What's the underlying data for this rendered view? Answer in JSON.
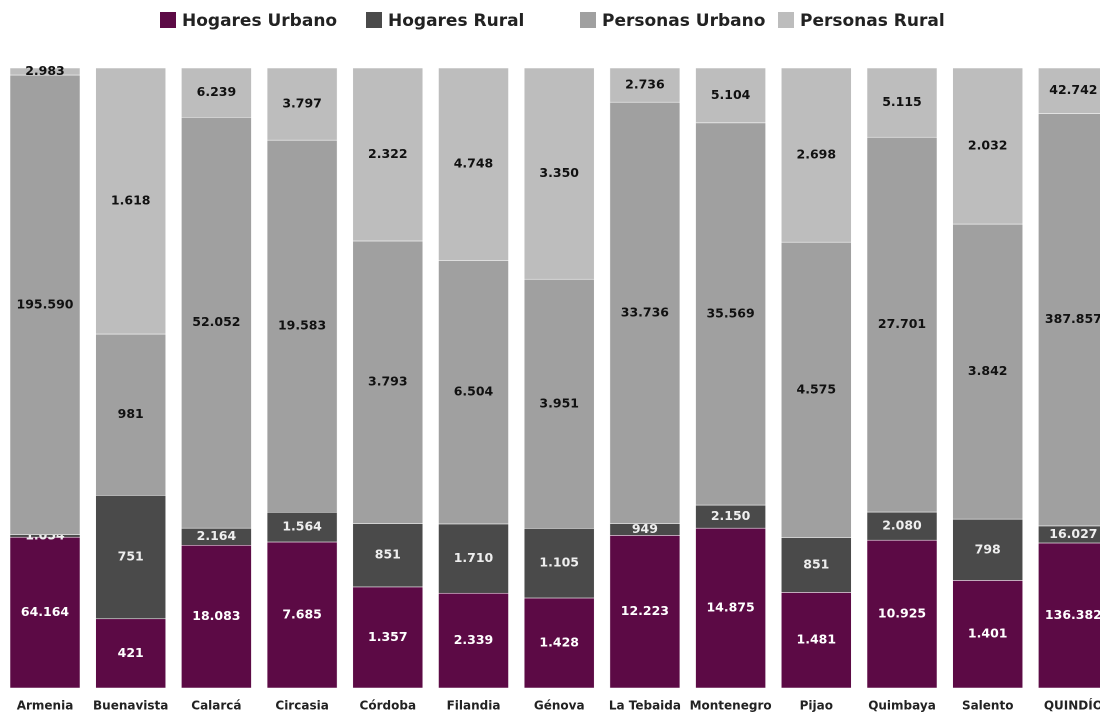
{
  "chart_data": {
    "type": "stacked_bar_100",
    "categories": [
      "Armenia",
      "Buenavista",
      "Calarcá",
      "Circasia",
      "Córdoba",
      "Filandia",
      "Génova",
      "La Tebaida",
      "Montenegro",
      "Pijao",
      "Quimbaya",
      "Salento",
      "QUINDÍO"
    ],
    "series": [
      {
        "name": "Hogares Urbano",
        "color": "#5c0a45",
        "values": [
          64164,
          421,
          18083,
          7685,
          1357,
          2339,
          1428,
          12223,
          14875,
          1481,
          10925,
          1401,
          136382
        ],
        "value_labels": [
          "64.164",
          "421",
          "18.083",
          "7.685",
          "1.357",
          "2.339",
          "1.428",
          "12.223",
          "14.875",
          "1.481",
          "10.925",
          "1.401",
          "136.382"
        ]
      },
      {
        "name": "Hogares Rural",
        "color": "#4a4a4a",
        "values": [
          1054,
          751,
          2164,
          1564,
          851,
          1710,
          1105,
          949,
          2150,
          851,
          2080,
          798,
          16027
        ],
        "value_labels": [
          "1.054",
          "751",
          "2.164",
          "1.564",
          "851",
          "1.710",
          "1.105",
          "949",
          "2.150",
          "851",
          "2.080",
          "798",
          "16.027"
        ]
      },
      {
        "name": "Personas Urbano",
        "color": "#a0a0a0",
        "values": [
          195590,
          981,
          52052,
          19583,
          3793,
          6504,
          3951,
          33736,
          35569,
          4575,
          27701,
          3842,
          387857
        ],
        "value_labels": [
          "195.590",
          "981",
          "52.052",
          "19.583",
          "3.793",
          "6.504",
          "3.951",
          "33.736",
          "35.569",
          "4.575",
          "27.701",
          "3.842",
          "387.857"
        ]
      },
      {
        "name": "Personas Rural",
        "color": "#bdbdbd",
        "values": [
          2983,
          1618,
          6239,
          3797,
          2322,
          4748,
          3350,
          2736,
          5104,
          2698,
          5115,
          2032,
          42742
        ],
        "value_labels": [
          "2.983",
          "1.618",
          "6.239",
          "3.797",
          "2.322",
          "4.748",
          "3.350",
          "2.736",
          "5.104",
          "2.698",
          "5.115",
          "2.032",
          "42.742"
        ]
      }
    ]
  }
}
